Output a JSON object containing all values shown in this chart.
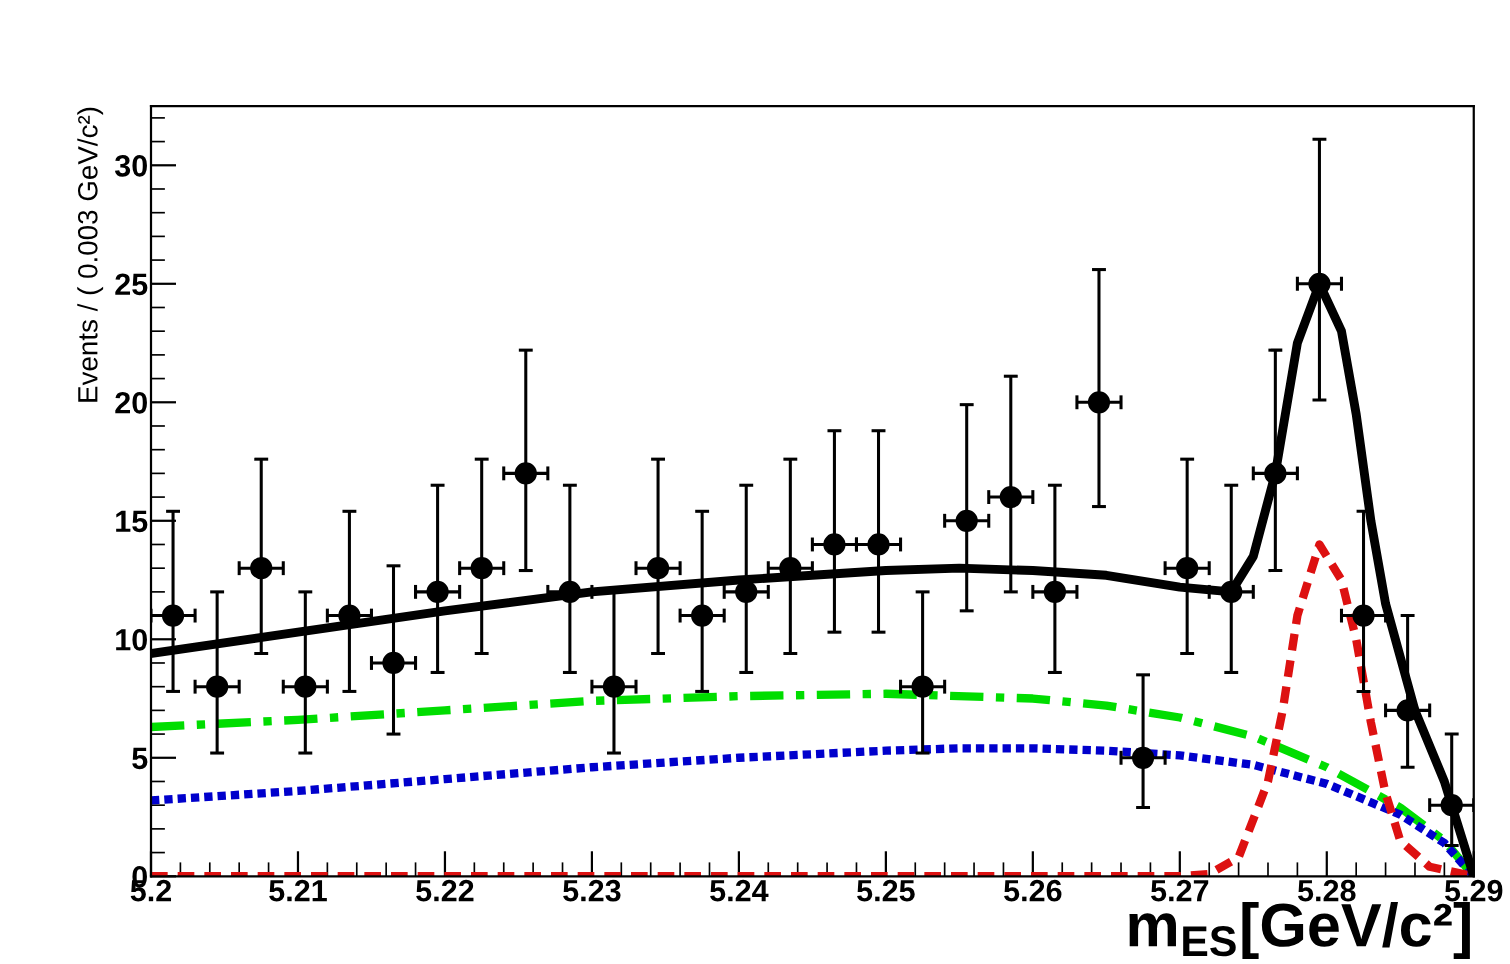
{
  "chart_data": {
    "type": "line",
    "xlabel": "m$_{ES}$[GeV/c²]",
    "ylabel": "Events / ( 0.003 GeV/c²)",
    "xlim": [
      5.2,
      5.29
    ],
    "xticks": [
      5.2,
      5.21,
      5.22,
      5.23,
      5.24,
      5.25,
      5.26,
      5.27,
      5.28,
      5.29
    ],
    "ylim": [
      0,
      32.5
    ],
    "yticks": [
      0,
      5,
      10,
      15,
      20,
      25,
      30
    ],
    "grid": false,
    "legend": false,
    "series": [
      {
        "color": "#00dd00",
        "line_style": "dashdot",
        "x": [
          5.2,
          5.21,
          5.22,
          5.23,
          5.24,
          5.25,
          5.26,
          5.265,
          5.27,
          5.275,
          5.28,
          5.285,
          5.288,
          5.29
        ],
        "values": [
          6.3,
          6.6,
          7.0,
          7.4,
          7.6,
          7.7,
          7.5,
          7.2,
          6.7,
          5.9,
          4.6,
          2.9,
          1.5,
          0
        ]
      },
      {
        "color": "#0000cc",
        "line_style": "dotted",
        "x": [
          5.2,
          5.21,
          5.22,
          5.23,
          5.24,
          5.25,
          5.255,
          5.26,
          5.265,
          5.27,
          5.275,
          5.28,
          5.285,
          5.288,
          5.29
        ],
        "values": [
          3.2,
          3.6,
          4.1,
          4.6,
          5.0,
          5.3,
          5.4,
          5.4,
          5.3,
          5.1,
          4.7,
          3.9,
          2.6,
          1.4,
          0
        ]
      },
      {
        "color": "#dd1111",
        "line_style": "dashed",
        "x": [
          5.2,
          5.27,
          5.272,
          5.274,
          5.276,
          5.277,
          5.278,
          5.2795,
          5.281,
          5.282,
          5.283,
          5.284,
          5.285,
          5.287,
          5.29
        ],
        "values": [
          0,
          0,
          0.1,
          0.8,
          4,
          7,
          11,
          14,
          12.5,
          10,
          6.5,
          3.5,
          1.5,
          0.4,
          0
        ]
      },
      {
        "color": "#000000",
        "line_style": "solid",
        "x": [
          5.2,
          5.21,
          5.22,
          5.23,
          5.24,
          5.25,
          5.255,
          5.26,
          5.265,
          5.27,
          5.2735,
          5.275,
          5.2765,
          5.278,
          5.2795,
          5.281,
          5.282,
          5.283,
          5.284,
          5.286,
          5.288,
          5.29
        ],
        "values": [
          9.4,
          10.3,
          11.2,
          12.0,
          12.5,
          12.9,
          13.0,
          12.9,
          12.7,
          12.2,
          12.0,
          13.5,
          17,
          22.5,
          25,
          23,
          19.5,
          15,
          11.5,
          7,
          4,
          0
        ]
      },
      {
        "type": "scatter",
        "color": "#000000",
        "marker": "circle",
        "x": [
          5.2015,
          5.2045,
          5.2075,
          5.2105,
          5.2135,
          5.2165,
          5.2195,
          5.2225,
          5.2255,
          5.2285,
          5.2315,
          5.2345,
          5.2375,
          5.2405,
          5.2435,
          5.2465,
          5.2495,
          5.2525,
          5.2555,
          5.2585,
          5.2615,
          5.2645,
          5.2675,
          5.2705,
          5.2735,
          5.2765,
          5.2795,
          5.2825,
          5.2855,
          5.2885
        ],
        "values": [
          11,
          8,
          13,
          8,
          11,
          9,
          12,
          13,
          17,
          12,
          8,
          13,
          11,
          12,
          13,
          14,
          14,
          8,
          15,
          16,
          12,
          20,
          5,
          13,
          12,
          17,
          25,
          11,
          7,
          3
        ],
        "errors": [
          [
            7.8,
            15.4
          ],
          [
            5.2,
            12
          ],
          [
            9.4,
            17.6
          ],
          [
            5.2,
            12
          ],
          [
            7.8,
            15.4
          ],
          [
            6.0,
            13.1
          ],
          [
            8.6,
            16.5
          ],
          [
            9.4,
            17.6
          ],
          [
            12.9,
            22.2
          ],
          [
            8.6,
            16.5
          ],
          [
            5.2,
            12
          ],
          [
            9.4,
            17.6
          ],
          [
            7.8,
            15.4
          ],
          [
            8.6,
            16.5
          ],
          [
            9.4,
            17.6
          ],
          [
            10.3,
            18.8
          ],
          [
            10.3,
            18.8
          ],
          [
            5.2,
            12
          ],
          [
            11.2,
            19.9
          ],
          [
            12.0,
            21.1
          ],
          [
            8.6,
            16.5
          ],
          [
            15.6,
            25.6
          ],
          [
            2.9,
            8.5
          ],
          [
            9.4,
            17.6
          ],
          [
            8.6,
            16.5
          ],
          [
            12.9,
            22.2
          ],
          [
            20.1,
            31.1
          ],
          [
            7.8,
            15.4
          ],
          [
            4.6,
            11.0
          ],
          [
            1.3,
            6.0
          ]
        ],
        "xerrors": [
          0.0015,
          0.0015,
          0.0015,
          0.0015,
          0.0015,
          0.0015,
          0.0015,
          0.0015,
          0.0015,
          0.0015,
          0.0015,
          0.0015,
          0.0015,
          0.0015,
          0.0015,
          0.0015,
          0.0015,
          0.0015,
          0.0015,
          0.0015,
          0.0015,
          0.0015,
          0.0015,
          0.0015,
          0.0015,
          0.0015,
          0.0015,
          0.0015,
          0.0015,
          0.0015
        ]
      }
    ]
  }
}
